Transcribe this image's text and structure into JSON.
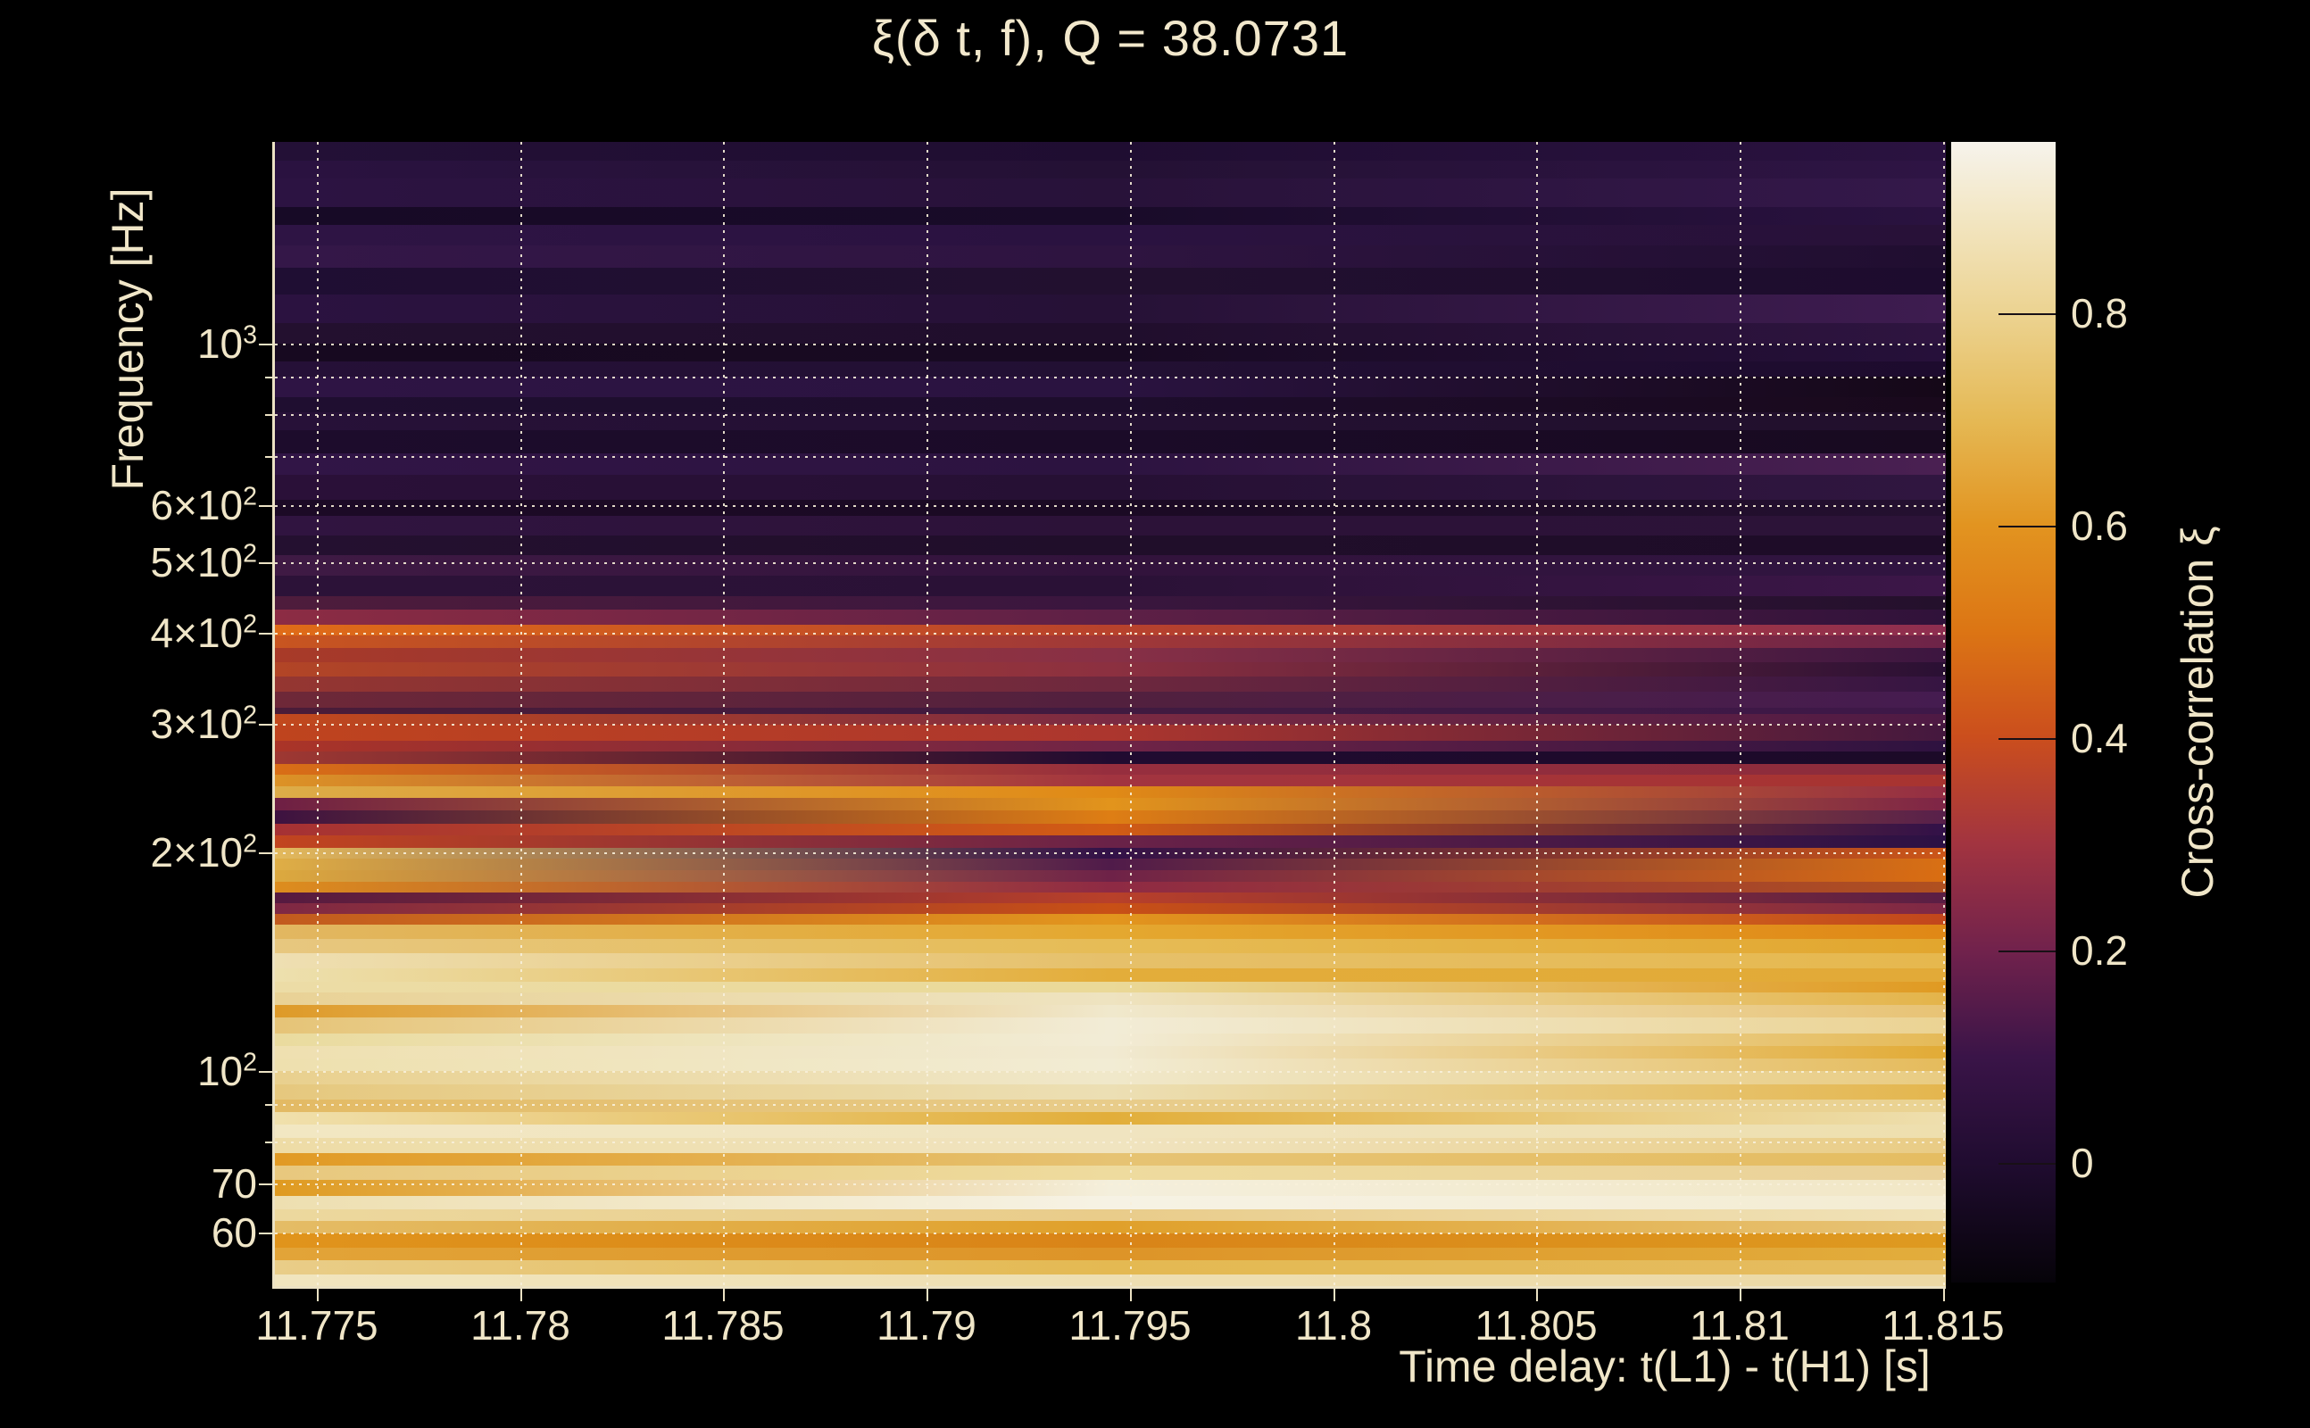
{
  "title": "ξ(δ t, f), Q = 38.0731",
  "colors": {
    "background": "#000000",
    "text": "#f0e6c8",
    "spine": "#ece2c4",
    "gridline": "#f8f0da"
  },
  "chart_data": {
    "type": "heatmap",
    "title": "ξ(δ t, f), Q = 38.0731",
    "xlabel": "Time delay: t(L1) - t(H1) [s]",
    "ylabel": "Frequency [Hz]",
    "x_range": [
      11.7735,
      11.8151
    ],
    "y_range_hz": [
      50,
      1900
    ],
    "y_scale": "log",
    "grid": "dotted",
    "x_ticks": [
      11.775,
      11.78,
      11.785,
      11.79,
      11.795,
      11.8,
      11.805,
      11.81,
      11.815
    ],
    "x_tick_labels": [
      "11.775",
      "11.78",
      "11.785",
      "11.79",
      "11.795",
      "11.8",
      "11.805",
      "11.81",
      "11.815"
    ],
    "y_ticks": [
      {
        "hz": 1000,
        "text": "10",
        "exp": "3"
      },
      {
        "hz": 600,
        "text": "6×10",
        "exp": "2"
      },
      {
        "hz": 500,
        "text": "5×10",
        "exp": "2"
      },
      {
        "hz": 400,
        "text": "4×10",
        "exp": "2"
      },
      {
        "hz": 300,
        "text": "3×10",
        "exp": "2"
      },
      {
        "hz": 200,
        "text": "2×10",
        "exp": "2"
      },
      {
        "hz": 100,
        "text": "10",
        "exp": "2"
      },
      {
        "hz": 70,
        "text": "70",
        "exp": null
      },
      {
        "hz": 60,
        "text": "60",
        "exp": null
      }
    ],
    "gridlines_hz": [
      1000,
      900,
      800,
      700,
      600,
      500,
      400,
      300,
      200,
      100,
      90,
      80,
      70,
      60
    ],
    "colorbar": {
      "label": "Cross-correlation ξ",
      "tick_values": [
        0.8,
        0.6,
        0.4,
        0.2,
        0
      ],
      "tick_labels": [
        "0.8",
        "0.6",
        "0.4",
        "0.2",
        "0"
      ],
      "range": [
        -0.113,
        0.961
      ],
      "stops": [
        {
          "v": -0.113,
          "c": "#060309"
        },
        {
          "v": 0.0,
          "c": "#200c30"
        },
        {
          "v": 0.1,
          "c": "#3a1448"
        },
        {
          "v": 0.2,
          "c": "#71224c"
        },
        {
          "v": 0.3,
          "c": "#a23440"
        },
        {
          "v": 0.4,
          "c": "#cb4e1d"
        },
        {
          "v": 0.5,
          "c": "#dc7514"
        },
        {
          "v": 0.6,
          "c": "#e29420"
        },
        {
          "v": 0.7,
          "c": "#e5b955"
        },
        {
          "v": 0.8,
          "c": "#ecd391"
        },
        {
          "v": 0.9,
          "c": "#f3e8c8"
        },
        {
          "v": 0.961,
          "c": "#f6f3ec"
        }
      ]
    },
    "rows": [
      {
        "y0": 0,
        "y1": 21,
        "c": [
          "#231036",
          "#1f0d31",
          "#2a1240"
        ]
      },
      {
        "y0": 21,
        "y1": 41,
        "c": [
          "#2a1240",
          "#241134",
          "#2e1444"
        ]
      },
      {
        "y0": 41,
        "y1": 73,
        "c": [
          "#2c1342",
          "#281239",
          "#34184a"
        ]
      },
      {
        "y0": 73,
        "y1": 93,
        "c": [
          "#170a26",
          "#190b29",
          "#2a1240"
        ]
      },
      {
        "y0": 93,
        "y1": 116,
        "c": [
          "#2e1444",
          "#2a1240",
          "#281138"
        ]
      },
      {
        "y0": 116,
        "y1": 141,
        "c": [
          "#341748",
          "#2e1440",
          "#200e30"
        ]
      },
      {
        "y0": 141,
        "y1": 171,
        "c": [
          "#1f0e33",
          "#22102f",
          "#1d0c2e"
        ]
      },
      {
        "y0": 171,
        "y1": 203,
        "c": [
          "#2b1240",
          "#261136",
          "#3e1c50"
        ]
      },
      {
        "y0": 203,
        "y1": 226,
        "c": [
          "#23102f",
          "#200e2c",
          "#2e1440"
        ]
      },
      {
        "y0": 226,
        "y1": 246,
        "c": [
          "#170920",
          "#180a22",
          "#26103a"
        ]
      },
      {
        "y0": 246,
        "y1": 263,
        "c": [
          "#251037",
          "#221033",
          "#1d0b2e"
        ]
      },
      {
        "y0": 263,
        "y1": 286,
        "c": [
          "#2e1444",
          "#2a1340",
          "#150818"
        ]
      },
      {
        "y0": 286,
        "y1": 303,
        "c": [
          "#1f0e30",
          "#1d0d2c",
          "#19091c"
        ]
      },
      {
        "y0": 303,
        "y1": 323,
        "c": [
          "#271138",
          "#231032",
          "#22102c"
        ]
      },
      {
        "y0": 323,
        "y1": 349,
        "c": [
          "#1d0c2c",
          "#1b0b28",
          "#180a20"
        ]
      },
      {
        "y0": 349,
        "y1": 373,
        "c": [
          "#311546",
          "#2c1340",
          "#4a2052"
        ]
      },
      {
        "y0": 373,
        "y1": 401,
        "c": [
          "#2a1038",
          "#261034",
          "#301640"
        ]
      },
      {
        "y0": 401,
        "y1": 419,
        "c": [
          "#1c0a26",
          "#1b0a24",
          "#241030"
        ]
      },
      {
        "y0": 419,
        "y1": 441,
        "c": [
          "#301440",
          "#2c1238",
          "#2c1338"
        ]
      },
      {
        "y0": 441,
        "y1": 463,
        "c": [
          "#241030",
          "#200e2a",
          "#1e0c28"
        ]
      },
      {
        "y0": 463,
        "y1": 486,
        "c": [
          "#3f1a44",
          "#32133c",
          "#301440"
        ]
      },
      {
        "y0": 486,
        "y1": 509,
        "c": [
          "#2c1238",
          "#2a1136",
          "#3c1648"
        ]
      },
      {
        "y0": 509,
        "y1": 524,
        "c": [
          "#4e1c3c",
          "#3a163e",
          "#24102c"
        ]
      },
      {
        "y0": 524,
        "y1": 541,
        "c": [
          "#8c2c44",
          "#5e2046",
          "#30123a"
        ]
      },
      {
        "y0": 541,
        "y1": 553,
        "c": [
          "#e06c18",
          "#b8422c",
          "#8e2e50"
        ]
      },
      {
        "y0": 553,
        "y1": 567,
        "c": [
          "#c85520",
          "#a03838",
          "#6e2448"
        ]
      },
      {
        "y0": 567,
        "y1": 583,
        "c": [
          "#a83a28",
          "#883046",
          "#3c1640"
        ]
      },
      {
        "y0": 583,
        "y1": 599,
        "c": [
          "#b24526",
          "#8c3040",
          "#2a1034"
        ]
      },
      {
        "y0": 599,
        "y1": 616,
        "c": [
          "#953631",
          "#6e283e",
          "#361542"
        ]
      },
      {
        "y0": 616,
        "y1": 634,
        "c": [
          "#6e2838",
          "#52203e",
          "#451c50"
        ]
      },
      {
        "y0": 634,
        "y1": 641,
        "c": [
          "#4a1c38",
          "#401a40",
          "#3e1848"
        ]
      },
      {
        "y0": 641,
        "y1": 653,
        "c": [
          "#c2491d",
          "#7a2a42",
          "#4e1a44"
        ]
      },
      {
        "y0": 653,
        "y1": 671,
        "c": [
          "#bf441e",
          "#ac362e",
          "#44183e"
        ]
      },
      {
        "y0": 671,
        "y1": 683,
        "c": [
          "#aa3428",
          "#702446",
          "#2e1240"
        ]
      },
      {
        "y0": 683,
        "y1": 697,
        "c": [
          "#9e3832",
          "#200b30",
          "#1c0a28"
        ]
      },
      {
        "y0": 697,
        "y1": 709,
        "c": [
          "#d96e16",
          "#962e3e",
          "#8c2c3c"
        ]
      },
      {
        "y0": 709,
        "y1": 722,
        "c": [
          "#dc9226",
          "#a23440",
          "#a83430"
        ]
      },
      {
        "y0": 722,
        "y1": 735,
        "c": [
          "#ddac48",
          "#e08a16",
          "#942e44"
        ]
      },
      {
        "y0": 735,
        "y1": 749,
        "c": [
          "#6e1f44",
          "#e2941c",
          "#7e2546"
        ]
      },
      {
        "y0": 749,
        "y1": 764,
        "c": [
          "#3d1240",
          "#de7e14",
          "#58204a"
        ]
      },
      {
        "y0": 764,
        "y1": 777,
        "c": [
          "#a53134",
          "#d25c14",
          "#321148"
        ]
      },
      {
        "y0": 777,
        "y1": 791,
        "c": [
          "#c2451f",
          "#6a2248",
          "#2c1144"
        ]
      },
      {
        "y0": 791,
        "y1": 803,
        "c": [
          "#e3b95c",
          "#321148",
          "#cc5618"
        ]
      },
      {
        "y0": 803,
        "y1": 816,
        "c": [
          "#dfae46",
          "#501b4a",
          "#d97014"
        ]
      },
      {
        "y0": 816,
        "y1": 829,
        "c": [
          "#dca93f",
          "#6e2248",
          "#da6e12"
        ]
      },
      {
        "y0": 829,
        "y1": 841,
        "c": [
          "#dd8d1e",
          "#8e2a44",
          "#b05020"
        ]
      },
      {
        "y0": 841,
        "y1": 853,
        "c": [
          "#551a40",
          "#b8402a",
          "#5a1e44"
        ]
      },
      {
        "y0": 853,
        "y1": 865,
        "c": [
          "#7e2844",
          "#c85016",
          "#7e2846"
        ]
      },
      {
        "y0": 865,
        "y1": 877,
        "c": [
          "#c25a1e",
          "#e2961e",
          "#c2461c"
        ]
      },
      {
        "y0": 877,
        "y1": 893,
        "c": [
          "#e2b761",
          "#e4a830",
          "#e08816"
        ]
      },
      {
        "y0": 893,
        "y1": 909,
        "c": [
          "#e7c77f",
          "#e6bc56",
          "#e2a62e"
        ]
      },
      {
        "y0": 909,
        "y1": 926,
        "c": [
          "#eedfb2",
          "#e6c06a",
          "#e6b84e"
        ]
      },
      {
        "y0": 926,
        "y1": 941,
        "c": [
          "#ede0ae",
          "#e3ad3a",
          "#e2aa38"
        ]
      },
      {
        "y0": 941,
        "y1": 953,
        "c": [
          "#ecdca6",
          "#ead998",
          "#e09a22"
        ]
      },
      {
        "y0": 953,
        "y1": 967,
        "c": [
          "#e9d296",
          "#eee3c0",
          "#e4b44a"
        ]
      },
      {
        "y0": 967,
        "y1": 981,
        "c": [
          "#de9a28",
          "#f0e8cc",
          "#e8c375"
        ]
      },
      {
        "y0": 981,
        "y1": 999,
        "c": [
          "#e6c477",
          "#f2ecd6",
          "#ebd393"
        ]
      },
      {
        "y0": 999,
        "y1": 1013,
        "c": [
          "#eadb9e",
          "#f2ecd6",
          "#e5ba58"
        ]
      },
      {
        "y0": 1013,
        "y1": 1027,
        "c": [
          "#efe0b0",
          "#f1ead2",
          "#e2ab36"
        ]
      },
      {
        "y0": 1027,
        "y1": 1041,
        "c": [
          "#eee0ae",
          "#f2ecd4",
          "#e5bb5c"
        ]
      },
      {
        "y0": 1041,
        "y1": 1056,
        "c": [
          "#e9d08e",
          "#f0e8ca",
          "#e9cc82"
        ]
      },
      {
        "y0": 1056,
        "y1": 1073,
        "c": [
          "#e6c87e",
          "#ecdfb4",
          "#e4b64e"
        ]
      },
      {
        "y0": 1073,
        "y1": 1087,
        "c": [
          "#e3ba64",
          "#e8cc8a",
          "#ead393"
        ]
      },
      {
        "y0": 1087,
        "y1": 1101,
        "c": [
          "#f0e0ac",
          "#e2ae3a",
          "#eedfae"
        ]
      },
      {
        "y0": 1101,
        "y1": 1116,
        "c": [
          "#f2e7c2",
          "#f0e4c0",
          "#eedfae"
        ]
      },
      {
        "y0": 1116,
        "y1": 1133,
        "c": [
          "#eedca6",
          "#f0e4c0",
          "#e9cc85"
        ]
      },
      {
        "y0": 1133,
        "y1": 1147,
        "c": [
          "#e19a24",
          "#e6c373",
          "#e5bd62"
        ]
      },
      {
        "y0": 1147,
        "y1": 1163,
        "c": [
          "#e8c87e",
          "#eedb9e",
          "#ead199"
        ]
      },
      {
        "y0": 1163,
        "y1": 1181,
        "c": [
          "#df9a20",
          "#f4efdc",
          "#f2e7c6"
        ]
      },
      {
        "y0": 1181,
        "y1": 1196,
        "c": [
          "#eedfb0",
          "#f6f2e4",
          "#f4ecd2"
        ]
      },
      {
        "y0": 1196,
        "y1": 1209,
        "c": [
          "#ecd89e",
          "#e9cc8a",
          "#f0e2b8"
        ]
      },
      {
        "y0": 1209,
        "y1": 1223,
        "c": [
          "#e4bc66",
          "#e0a02a",
          "#e7c478"
        ]
      },
      {
        "y0": 1223,
        "y1": 1239,
        "c": [
          "#e0941c",
          "#d98418",
          "#de9a20"
        ]
      },
      {
        "y0": 1239,
        "y1": 1253,
        "c": [
          "#e2a438",
          "#dd9428",
          "#e2ad3c"
        ]
      },
      {
        "y0": 1253,
        "y1": 1269,
        "c": [
          "#e9cd88",
          "#e4b952",
          "#e5bc60"
        ]
      },
      {
        "y0": 1269,
        "y1": 1282,
        "c": [
          "#f1e5be",
          "#eedfb2",
          "#ecd8a4"
        ]
      }
    ]
  }
}
